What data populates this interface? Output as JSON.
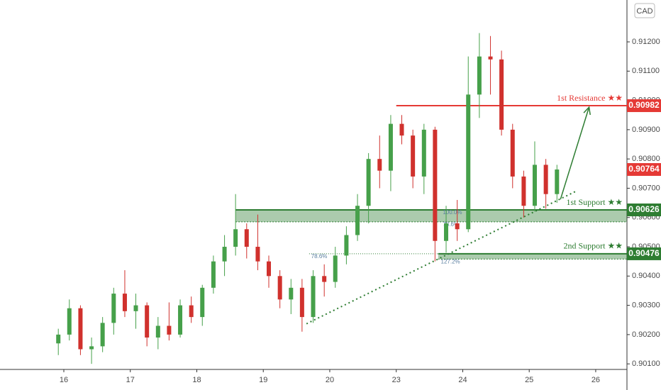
{
  "chart_data": {
    "type": "candlestick",
    "currency": "CAD",
    "x": [
      15.917,
      16.083,
      16.25,
      16.417,
      16.583,
      16.75,
      16.917,
      17.083,
      17.25,
      17.417,
      17.583,
      17.75,
      17.917,
      18.083,
      18.25,
      18.417,
      18.583,
      18.75,
      18.917,
      19.083,
      19.25,
      19.417,
      19.583,
      19.75,
      19.917,
      20.083,
      20.25,
      20.417,
      20.583,
      20.75,
      20.917,
      23.083,
      23.25,
      23.417,
      23.583,
      23.75,
      23.917,
      24.083,
      24.25,
      24.417,
      24.583,
      24.75,
      24.917,
      25.083,
      25.25,
      25.417
    ],
    "open": [
      0.9017,
      0.902,
      0.9029,
      0.9015,
      0.9016,
      0.9024,
      0.9034,
      0.9028,
      0.903,
      0.9019,
      0.9023,
      0.902,
      0.903,
      0.9026,
      0.9036,
      0.9045,
      0.905,
      0.9056,
      0.905,
      0.9045,
      0.904,
      0.9032,
      0.9036,
      0.9026,
      0.904,
      0.9038,
      0.9047,
      0.9054,
      0.9064,
      0.908,
      0.9076,
      0.9092,
      0.9088,
      0.9074,
      0.909,
      0.9052,
      0.9058,
      0.9056,
      0.9102,
      0.9115,
      0.9114,
      0.909,
      0.9074,
      0.9064,
      0.9078,
      0.9068
    ],
    "high": [
      0.9022,
      0.9032,
      0.903,
      0.9019,
      0.9026,
      0.9036,
      0.9042,
      0.9034,
      0.9031,
      0.9026,
      0.9031,
      0.9032,
      0.9033,
      0.9037,
      0.9047,
      0.9054,
      0.9068,
      0.9058,
      0.9061,
      0.9047,
      0.9042,
      0.9039,
      0.9039,
      0.9042,
      0.9044,
      0.905,
      0.9057,
      0.9068,
      0.9082,
      0.9088,
      0.9095,
      0.9095,
      0.909,
      0.9092,
      0.9091,
      0.9064,
      0.9066,
      0.9115,
      0.9123,
      0.9122,
      0.9117,
      0.9092,
      0.9076,
      0.9086,
      0.908,
      0.9078
    ],
    "low": [
      0.9013,
      0.9018,
      0.9013,
      0.901,
      0.9014,
      0.902,
      0.9026,
      0.9022,
      0.9016,
      0.9015,
      0.9018,
      0.9019,
      0.9024,
      0.9023,
      0.9034,
      0.904,
      0.9047,
      0.9046,
      0.9042,
      0.9036,
      0.9029,
      0.9027,
      0.9021,
      0.9024,
      0.9033,
      0.9036,
      0.9044,
      0.9052,
      0.9058,
      0.907,
      0.9069,
      0.9085,
      0.907,
      0.9068,
      0.9045,
      0.9048,
      0.9052,
      0.9055,
      0.9094,
      0.9102,
      0.9088,
      0.907,
      0.906,
      0.9062,
      0.9063,
      0.9065
    ],
    "close": [
      0.902,
      0.9029,
      0.9015,
      0.9016,
      0.9024,
      0.9034,
      0.9028,
      0.903,
      0.9019,
      0.9023,
      0.902,
      0.903,
      0.9026,
      0.9036,
      0.9045,
      0.905,
      0.9056,
      0.905,
      0.9045,
      0.904,
      0.9032,
      0.9036,
      0.9026,
      0.904,
      0.9038,
      0.9047,
      0.9054,
      0.9064,
      0.908,
      0.9076,
      0.9092,
      0.9088,
      0.9074,
      0.909,
      0.9052,
      0.9058,
      0.9056,
      0.9102,
      0.9115,
      0.9114,
      0.909,
      0.9074,
      0.9064,
      0.9078,
      0.9068,
      0.90764
    ],
    "up_color": "#46a04a",
    "down_color": "#d0312d",
    "last_price": 0.90764,
    "ylim": [
      0.90081,
      0.91343
    ],
    "yticks": [
      {
        "value": 0.901,
        "label": "0.90100"
      },
      {
        "value": 0.902,
        "label": "0.90200"
      },
      {
        "value": 0.903,
        "label": "0.90300"
      },
      {
        "value": 0.904,
        "label": "0.90400"
      },
      {
        "value": 0.905,
        "label": "0.90500"
      },
      {
        "value": 0.906,
        "label": "0.90600"
      },
      {
        "value": 0.907,
        "label": "0.90700"
      },
      {
        "value": 0.908,
        "label": "0.90800"
      },
      {
        "value": 0.909,
        "label": "0.90900"
      },
      {
        "value": 0.91,
        "label": "0.91000"
      },
      {
        "value": 0.911,
        "label": "0.91100"
      },
      {
        "value": 0.912,
        "label": "0.91200"
      }
    ],
    "xlim": [
      15.04,
      26.47
    ],
    "xticks": [
      16,
      17,
      18,
      19,
      20,
      23,
      24,
      25,
      26
    ],
    "grid": false,
    "levels": [
      {
        "name": "1st Resistance ★★",
        "value": 0.90982,
        "start": 23.0,
        "color": "#e53935"
      },
      {
        "name": "1st Support ★★",
        "value": 0.90626,
        "zone_low": 0.90585,
        "start": 18.583,
        "color": "#2e7d32"
      },
      {
        "name": "2nd Support ★★",
        "value": 0.90476,
        "zone_low": 0.90458,
        "start": 23.63,
        "color": "#2e7d32"
      }
    ],
    "fib_labels": [
      {
        "label": "100.0%",
        "price": 0.90626,
        "x": 23.7
      },
      {
        "label": "78.6%",
        "price": 0.90585,
        "x": 23.7
      },
      {
        "label": "78.6%",
        "price": 0.90476,
        "x": 19.72
      },
      {
        "label": "127.2%",
        "price": 0.90458,
        "x": 23.67
      }
    ],
    "fib_line": {
      "x": [
        19.69,
        23.63
      ],
      "y": [
        0.90476,
        0.90476
      ]
    },
    "trendline": {
      "x": [
        19.65,
        25.705
      ],
      "y": [
        0.90237,
        0.9069
      ]
    },
    "arrow": {
      "x": [
        25.47,
        25.9
      ],
      "y": [
        0.90662,
        0.90977
      ]
    }
  }
}
